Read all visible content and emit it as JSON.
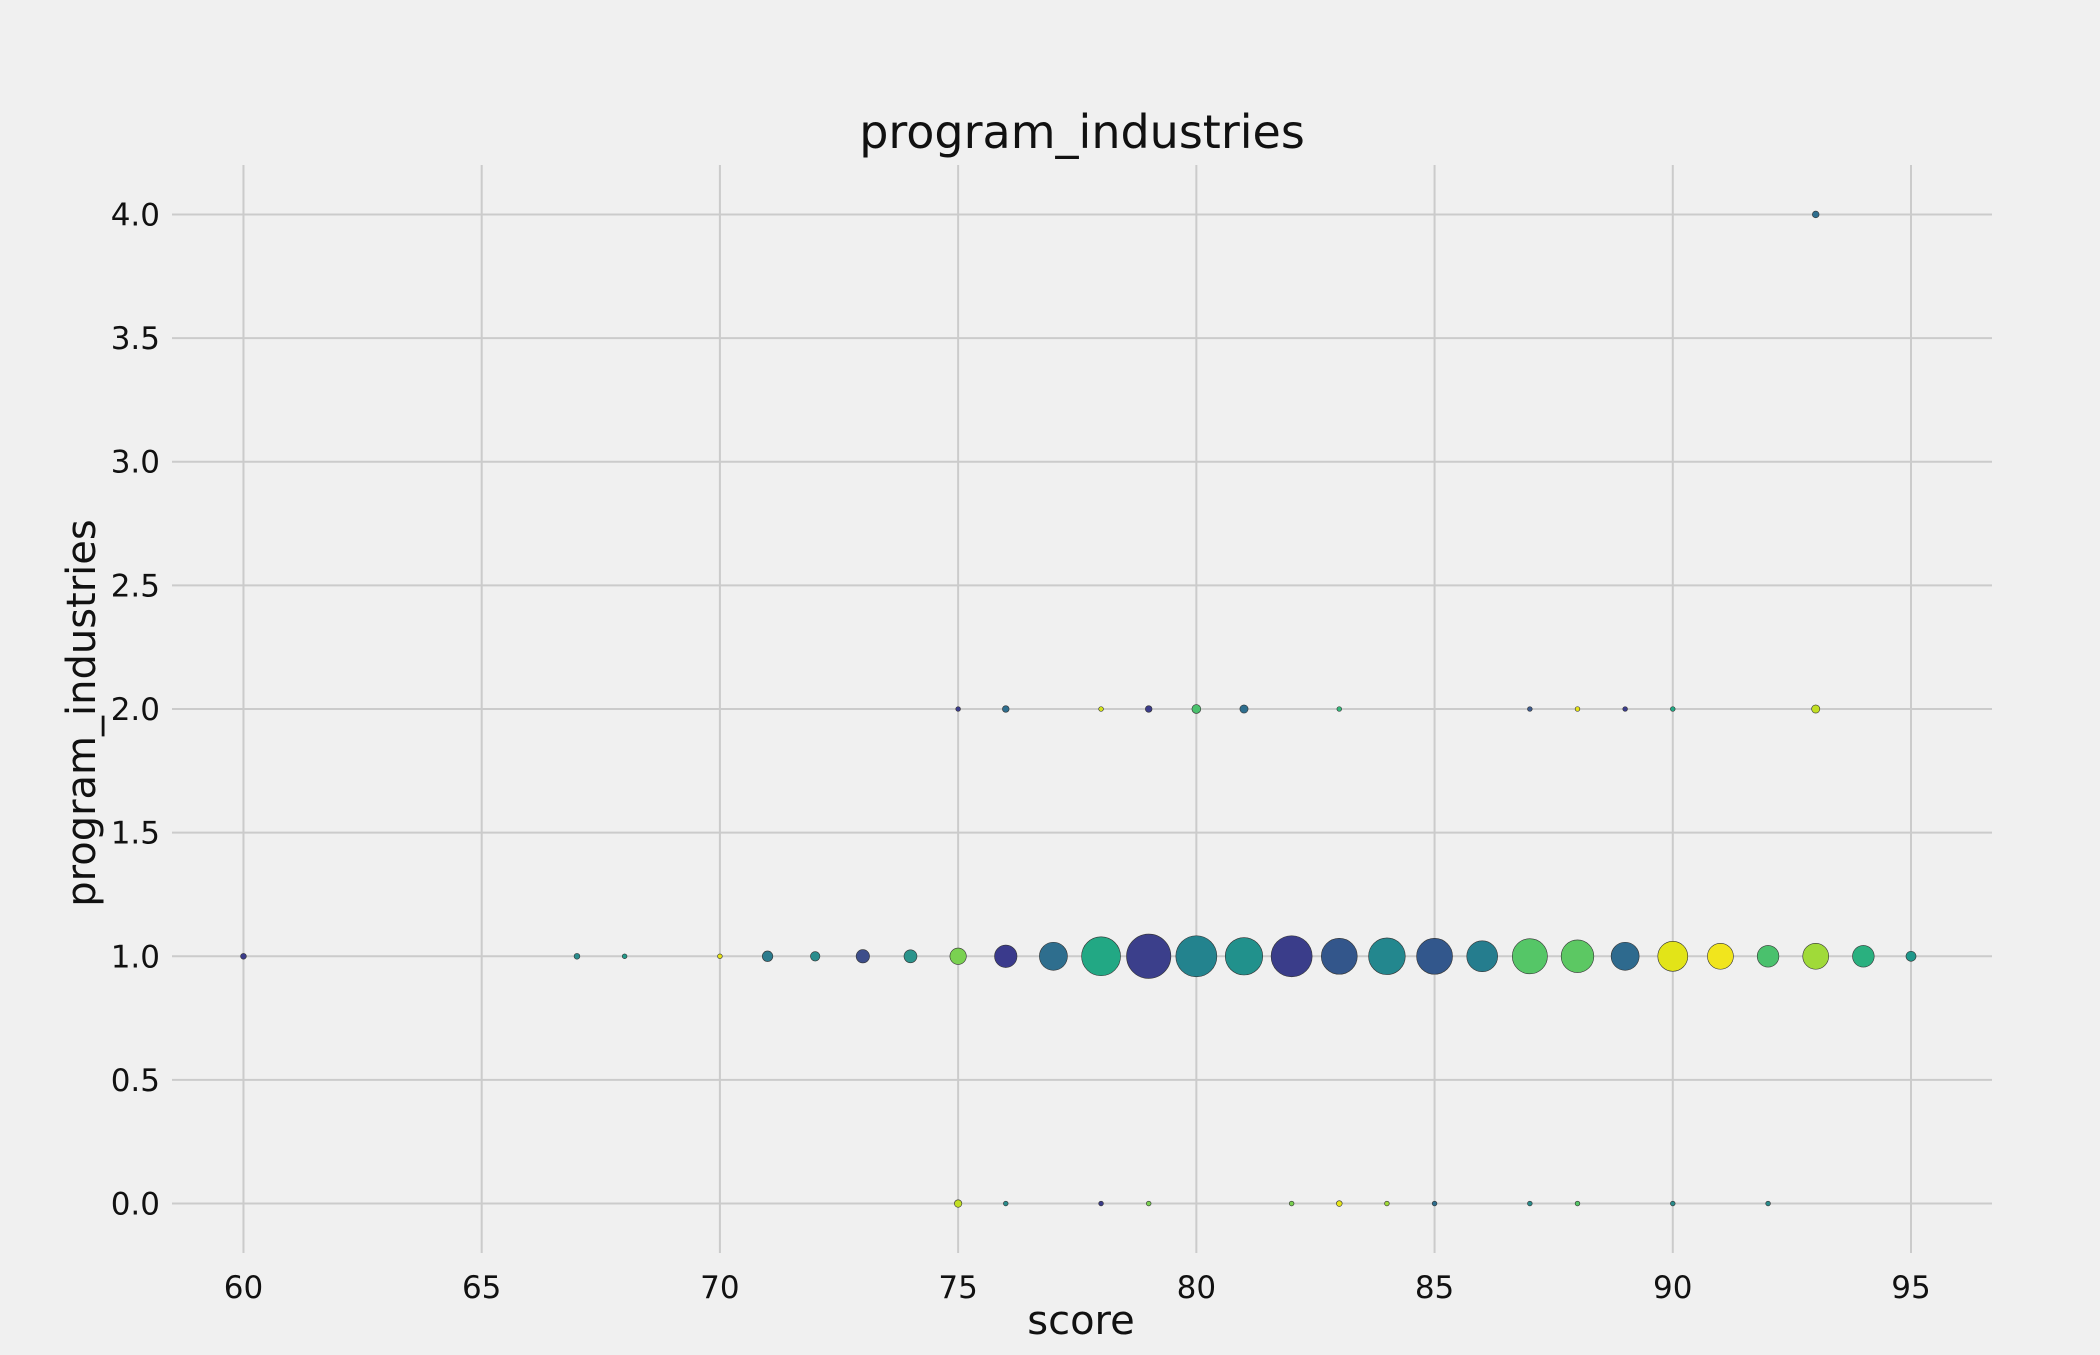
{
  "chart_data": {
    "type": "scatter",
    "title": "program_industries",
    "xlabel": "score",
    "ylabel": "program_industries",
    "xlim": [
      58.5,
      96.7
    ],
    "ylim": [
      -0.2,
      4.2
    ],
    "x_ticks": [
      60,
      65,
      70,
      75,
      80,
      85,
      90,
      95
    ],
    "y_ticks": [
      0.0,
      0.5,
      1.0,
      1.5,
      2.0,
      2.5,
      3.0,
      3.5,
      4.0
    ],
    "x_tick_labels": [
      "60",
      "65",
      "70",
      "75",
      "80",
      "85",
      "90",
      "95"
    ],
    "y_tick_labels": [
      "0.0",
      "0.5",
      "1.0",
      "1.5",
      "2.0",
      "2.5",
      "3.0",
      "3.5",
      "4.0"
    ],
    "grid": true,
    "colormap": "viridis",
    "points": [
      {
        "x": 60,
        "y": 1,
        "size": 0.3,
        "color": "#3b3c8a"
      },
      {
        "x": 67,
        "y": 1,
        "size": 0.3,
        "color": "#2a8c8c"
      },
      {
        "x": 68,
        "y": 1,
        "size": 0.2,
        "color": "#229b8b"
      },
      {
        "x": 70,
        "y": 1,
        "size": 0.2,
        "color": "#e6e419"
      },
      {
        "x": 71,
        "y": 1,
        "size": 1.0,
        "color": "#2b7b8d"
      },
      {
        "x": 72,
        "y": 1,
        "size": 0.8,
        "color": "#2a8c8c"
      },
      {
        "x": 73,
        "y": 1,
        "size": 1.6,
        "color": "#3d4e8a"
      },
      {
        "x": 74,
        "y": 1,
        "size": 1.5,
        "color": "#2b948c"
      },
      {
        "x": 75,
        "y": 1,
        "size": 2.4,
        "color": "#7ad151"
      },
      {
        "x": 76,
        "y": 1,
        "size": 4.5,
        "color": "#3a3a8c"
      },
      {
        "x": 77,
        "y": 1,
        "size": 7.0,
        "color": "#2e6e8e"
      },
      {
        "x": 78,
        "y": 1,
        "size": 13.5,
        "color": "#22a884"
      },
      {
        "x": 79,
        "y": 1,
        "size": 17.5,
        "color": "#3b3f8b"
      },
      {
        "x": 80,
        "y": 1,
        "size": 15.0,
        "color": "#23838e"
      },
      {
        "x": 81,
        "y": 1,
        "size": 12.5,
        "color": "#21918c"
      },
      {
        "x": 82,
        "y": 1,
        "size": 15.0,
        "color": "#3a3d8a"
      },
      {
        "x": 83,
        "y": 1,
        "size": 11.5,
        "color": "#33568b"
      },
      {
        "x": 84,
        "y": 1,
        "size": 12.0,
        "color": "#23878e"
      },
      {
        "x": 85,
        "y": 1,
        "size": 11.5,
        "color": "#32578c"
      },
      {
        "x": 86,
        "y": 1,
        "size": 8.5,
        "color": "#257d8e"
      },
      {
        "x": 87,
        "y": 1,
        "size": 11.0,
        "color": "#55c667"
      },
      {
        "x": 88,
        "y": 1,
        "size": 9.5,
        "color": "#5cc863"
      },
      {
        "x": 89,
        "y": 1,
        "size": 7.0,
        "color": "#2e6a8e"
      },
      {
        "x": 90,
        "y": 1,
        "size": 8.0,
        "color": "#e2e418"
      },
      {
        "x": 91,
        "y": 1,
        "size": 6.0,
        "color": "#f1e51d"
      },
      {
        "x": 92,
        "y": 1,
        "size": 4.2,
        "color": "#4ac16d"
      },
      {
        "x": 93,
        "y": 1,
        "size": 6.0,
        "color": "#a0da39"
      },
      {
        "x": 94,
        "y": 1,
        "size": 4.2,
        "color": "#2ab07f"
      },
      {
        "x": 95,
        "y": 1,
        "size": 0.9,
        "color": "#1f988b"
      },
      {
        "x": 75,
        "y": 2,
        "size": 0.2,
        "color": "#3b3c8a"
      },
      {
        "x": 76,
        "y": 2,
        "size": 0.4,
        "color": "#2e6e8e"
      },
      {
        "x": 78,
        "y": 2,
        "size": 0.2,
        "color": "#d2e21b"
      },
      {
        "x": 79,
        "y": 2,
        "size": 0.4,
        "color": "#3b3c8a"
      },
      {
        "x": 80,
        "y": 2,
        "size": 0.7,
        "color": "#4ac16d"
      },
      {
        "x": 81,
        "y": 2,
        "size": 0.6,
        "color": "#2e6e8e"
      },
      {
        "x": 83,
        "y": 2,
        "size": 0.2,
        "color": "#35b779"
      },
      {
        "x": 87,
        "y": 2,
        "size": 0.2,
        "color": "#3e5a8a"
      },
      {
        "x": 88,
        "y": 2,
        "size": 0.2,
        "color": "#e6e419"
      },
      {
        "x": 89,
        "y": 2,
        "size": 0.2,
        "color": "#3b3c8a"
      },
      {
        "x": 90,
        "y": 2,
        "size": 0.2,
        "color": "#22a884"
      },
      {
        "x": 93,
        "y": 2,
        "size": 0.6,
        "color": "#c2df23"
      },
      {
        "x": 93,
        "y": 4,
        "size": 0.4,
        "color": "#2e6e8e"
      },
      {
        "x": 75,
        "y": 0,
        "size": 0.5,
        "color": "#c2df23"
      },
      {
        "x": 76,
        "y": 0,
        "size": 0.2,
        "color": "#2a8c8c"
      },
      {
        "x": 78,
        "y": 0,
        "size": 0.2,
        "color": "#3b3c8a"
      },
      {
        "x": 79,
        "y": 0,
        "size": 0.2,
        "color": "#7ad151"
      },
      {
        "x": 82,
        "y": 0,
        "size": 0.2,
        "color": "#7ad151"
      },
      {
        "x": 83,
        "y": 0,
        "size": 0.3,
        "color": "#e6e419"
      },
      {
        "x": 84,
        "y": 0,
        "size": 0.2,
        "color": "#a0da39"
      },
      {
        "x": 85,
        "y": 0,
        "size": 0.2,
        "color": "#2e6e8e"
      },
      {
        "x": 87,
        "y": 0,
        "size": 0.2,
        "color": "#2a8c8c"
      },
      {
        "x": 88,
        "y": 0,
        "size": 0.2,
        "color": "#55c667"
      },
      {
        "x": 90,
        "y": 0,
        "size": 0.2,
        "color": "#2a8c8c"
      },
      {
        "x": 92,
        "y": 0,
        "size": 0.2,
        "color": "#2a8c8c"
      }
    ]
  }
}
